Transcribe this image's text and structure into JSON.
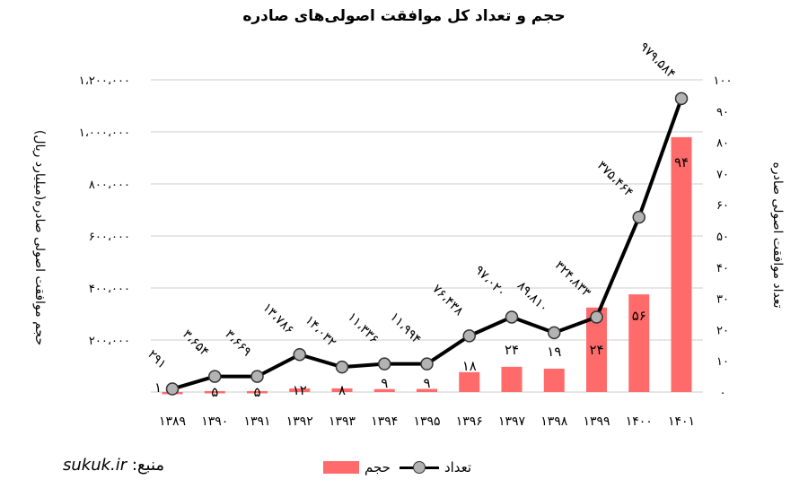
{
  "title": "حجم و تعداد کل موافقت اصولی‌های صادره",
  "source": {
    "label": "منبع:",
    "site": "sukuk.ir"
  },
  "legend": [
    {
      "key": "count",
      "label": "تعداد",
      "type": "line"
    },
    {
      "key": "volume",
      "label": "حجم",
      "type": "bar"
    }
  ],
  "colors": {
    "bar": "#ff6b6b",
    "line": "#000000",
    "marker": "#b3b3b3",
    "grid": "#e6e6e6"
  },
  "chart_data": {
    "type": "bar+line",
    "title": "حجم و تعداد کل موافقت اصولی‌های صادره",
    "categories": [
      "۱۳۸۹",
      "۱۳۹۰",
      "۱۳۹۱",
      "۱۳۹۲",
      "۱۳۹۳",
      "۱۳۹۴",
      "۱۳۹۵",
      "۱۳۹۶",
      "۱۳۹۷",
      "۱۳۹۸",
      "۱۳۹۹",
      "۱۴۰۰",
      "۱۴۰۱"
    ],
    "categories_latin": [
      1389,
      1390,
      1391,
      1392,
      1393,
      1394,
      1395,
      1396,
      1397,
      1398,
      1399,
      1400,
      1401
    ],
    "series": [
      {
        "name": "حجم",
        "type": "bar",
        "axis": "left",
        "values": [
          291,
          3654,
          3669,
          13786,
          14032,
          11336,
          11994,
          76438,
          97020,
          89810,
          324833,
          375464,
          979584
        ],
        "labels": [
          "۲۹۱",
          "۳،۶۵۴",
          "۳،۶۶۹",
          "۱۳،۷۸۶",
          "۱۴،۰۳۲",
          "۱۱،۳۳۶",
          "۱۱،۹۹۴",
          "۷۶،۴۳۸",
          "۹۷،۰۲۰",
          "۸۹،۸۱۰",
          "۳۲۴،۸۳۳",
          "۳۷۵،۴۶۴",
          "۹۷۹،۵۸۴"
        ]
      },
      {
        "name": "تعداد",
        "type": "line",
        "axis": "right",
        "values": [
          1,
          5,
          5,
          12,
          8,
          9,
          9,
          18,
          24,
          19,
          24,
          56,
          94
        ],
        "labels": [
          "۱",
          "۵",
          "۵",
          "۱۲",
          "۸",
          "۹",
          "۹",
          "۱۸",
          "۲۴",
          "۱۹",
          "۲۴",
          "۵۶",
          "۹۴"
        ]
      }
    ],
    "left_axis": {
      "label": "حجم موافقت اصولی صادره(میلیارد ریال)",
      "range": [
        0,
        1200000
      ],
      "ticks": [
        "۲۰۰،۰۰۰",
        "۴۰۰،۰۰۰",
        "۶۰۰،۰۰۰",
        "۸۰۰،۰۰۰",
        "۱،۰۰۰،۰۰۰",
        "۱،۲۰۰،۰۰۰"
      ]
    },
    "right_axis": {
      "label": "تعداد موافقت اصولی صادره",
      "range": [
        0,
        100
      ],
      "ticks": [
        "۰",
        "۱۰",
        "۲۰",
        "۳۰",
        "۴۰",
        "۵۰",
        "۶۰",
        "۷۰",
        "۸۰",
        "۹۰",
        "۱۰۰"
      ]
    },
    "grid": true,
    "legend_position": "bottom"
  }
}
